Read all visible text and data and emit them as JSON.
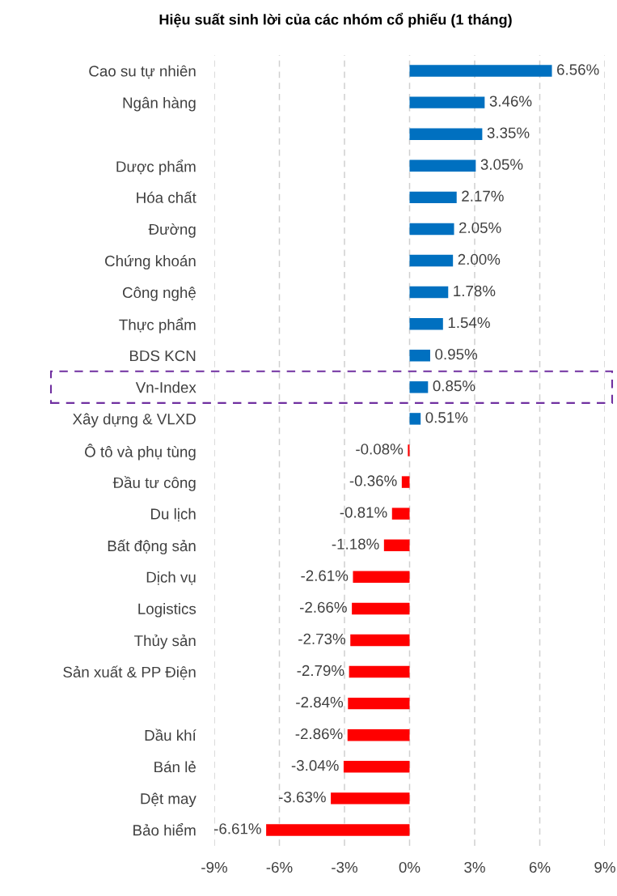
{
  "chart_data": {
    "type": "bar",
    "orientation": "horizontal",
    "title": "Hiệu suất sinh lời của các nhóm cổ phiếu (1 tháng)",
    "categories": [
      "Cao su tự nhiên",
      "Ngân hàng",
      null,
      "Dược phẩm",
      "Hóa chất",
      "Đường",
      "Chứng khoán",
      "Công nghệ",
      "Thực phẩm",
      "BDS KCN",
      "Vn-Index",
      "Xây dựng & VLXD",
      "Ô tô và phụ tùng",
      "Đầu tư công",
      "Du lịch",
      "Bất động sản",
      "Dịch vụ",
      "Logistics",
      "Thủy sản",
      "Sản xuất & PP Điện",
      null,
      "Dầu khí",
      "Bán lẻ",
      "Dệt may",
      "Bảo hiểm"
    ],
    "values": [
      6.56,
      3.46,
      3.35,
      3.05,
      2.17,
      2.05,
      2.0,
      1.78,
      1.54,
      0.95,
      0.85,
      0.51,
      -0.08,
      -0.36,
      -0.81,
      -1.18,
      -2.61,
      -2.66,
      -2.73,
      -2.79,
      -2.84,
      -2.86,
      -3.04,
      -3.63,
      -6.61
    ],
    "value_labels": [
      "6.56%",
      "3.46%",
      "3.35%",
      "3.05%",
      "2.17%",
      "2.05%",
      "2.00%",
      "1.78%",
      "1.54%",
      "0.95%",
      "0.85%",
      "0.51%",
      "-0.08%",
      "-0.36%",
      "-0.81%",
      "-1.18%",
      "-2.61%",
      "-2.66%",
      "-2.73%",
      "-2.79%",
      "-2.84%",
      "-2.86%",
      "-3.04%",
      "-3.63%",
      "-6.61%"
    ],
    "colors": [
      "#0070c0",
      "#0070c0",
      "#0070c0",
      "#0070c0",
      "#0070c0",
      "#0070c0",
      "#0070c0",
      "#0070c0",
      "#0070c0",
      "#0070c0",
      "#0070c0",
      "#0070c0",
      "#ff0000",
      "#ff0000",
      "#ff0000",
      "#ff0000",
      "#ff0000",
      "#ff0000",
      "#ff0000",
      "#ff0000",
      "#ff0000",
      "#ff0000",
      "#ff0000",
      "#ff0000",
      "#ff0000"
    ],
    "xlim": [
      -9,
      9
    ],
    "xticks": [
      {
        "value": -9,
        "label": "-9%"
      },
      {
        "value": -6,
        "label": "-6%"
      },
      {
        "value": -3,
        "label": "-3%"
      },
      {
        "value": 0,
        "label": "0%"
      },
      {
        "value": 3,
        "label": "3%"
      },
      {
        "value": 6,
        "label": "6%"
      },
      {
        "value": 9,
        "label": "9%"
      }
    ],
    "grid": "x",
    "legend": false
  }
}
